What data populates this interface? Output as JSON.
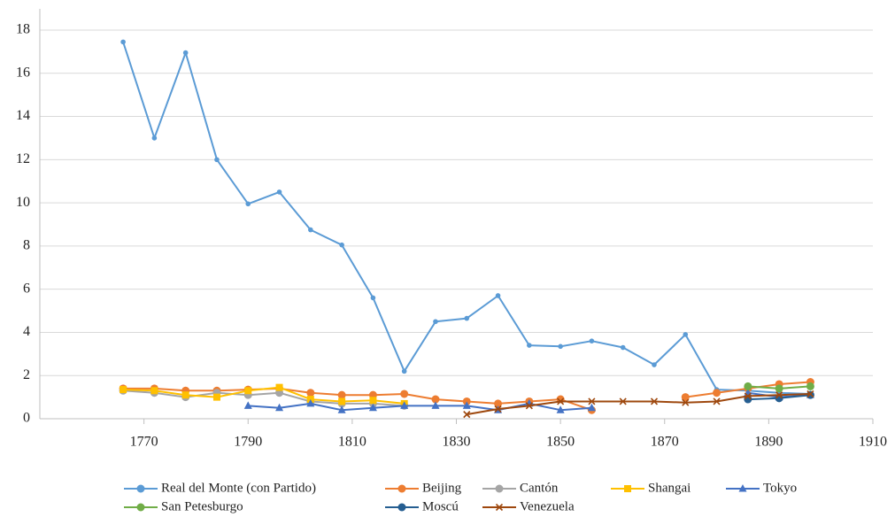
{
  "chart_data": {
    "type": "line",
    "x": [
      1766,
      1772,
      1778,
      1784,
      1790,
      1796,
      1802,
      1808,
      1814,
      1820,
      1826,
      1832,
      1838,
      1844,
      1850,
      1856,
      1862,
      1868,
      1874,
      1880,
      1886,
      1892,
      1898
    ],
    "xlim": [
      1750,
      1910
    ],
    "xticks": [
      1770,
      1790,
      1810,
      1830,
      1850,
      1870,
      1890,
      1910
    ],
    "ylim": [
      0,
      18
    ],
    "yticks": [
      0,
      2,
      4,
      6,
      8,
      10,
      12,
      14,
      16,
      18
    ],
    "grid": true,
    "legend": "bottom",
    "series": [
      {
        "name": "Real del Monte (con Partido)",
        "color": "#5b9bd5",
        "marker": "dot",
        "values": [
          17.45,
          13.0,
          16.95,
          12.0,
          9.95,
          10.5,
          8.75,
          8.05,
          5.6,
          2.2,
          4.5,
          4.65,
          5.7,
          3.4,
          3.35,
          3.6,
          3.3,
          2.5,
          3.9,
          1.35,
          1.3,
          1.2,
          1.15
        ]
      },
      {
        "name": "Beijing",
        "color": "#ed7d31",
        "marker": "circle",
        "values": [
          1.4,
          1.4,
          1.3,
          1.3,
          1.35,
          1.4,
          1.2,
          1.1,
          1.1,
          1.15,
          0.9,
          0.8,
          0.7,
          0.8,
          0.9,
          0.4,
          null,
          null,
          1.0,
          1.2,
          1.4,
          1.6,
          1.7
        ]
      },
      {
        "name": "Cantón",
        "color": "#a5a5a5",
        "marker": "circle",
        "values": [
          1.3,
          1.2,
          1.0,
          1.2,
          1.1,
          1.2,
          0.8,
          0.7,
          0.7,
          0.6,
          null,
          null,
          null,
          null,
          null,
          null,
          null,
          null,
          null,
          null,
          null,
          null,
          null
        ]
      },
      {
        "name": "Shangai",
        "color": "#ffc000",
        "marker": "square",
        "values": [
          1.35,
          1.3,
          1.1,
          1.0,
          1.3,
          1.45,
          0.9,
          0.8,
          0.85,
          0.7,
          null,
          null,
          null,
          null,
          null,
          null,
          null,
          null,
          null,
          null,
          null,
          null,
          null
        ]
      },
      {
        "name": "Tokyo",
        "color": "#4472c4",
        "marker": "triangle",
        "values": [
          null,
          null,
          null,
          null,
          0.6,
          0.5,
          0.7,
          0.4,
          0.5,
          0.6,
          0.6,
          0.6,
          0.4,
          0.7,
          0.4,
          0.5,
          null,
          null,
          null,
          null,
          1.2,
          1.0,
          1.1
        ]
      },
      {
        "name": "San Petesburgo",
        "color": "#70ad47",
        "marker": "circle",
        "values": [
          null,
          null,
          null,
          null,
          null,
          null,
          null,
          null,
          null,
          null,
          null,
          null,
          null,
          null,
          null,
          null,
          null,
          null,
          null,
          null,
          1.5,
          1.4,
          1.5
        ]
      },
      {
        "name": "Moscú",
        "color": "#255e91",
        "marker": "circle",
        "values": [
          null,
          null,
          null,
          null,
          null,
          null,
          null,
          null,
          null,
          null,
          null,
          null,
          null,
          null,
          null,
          null,
          null,
          null,
          null,
          null,
          0.9,
          0.95,
          1.1
        ]
      },
      {
        "name": "Venezuela",
        "color": "#9e480e",
        "marker": "x",
        "values": [
          null,
          null,
          null,
          null,
          null,
          null,
          null,
          null,
          null,
          null,
          null,
          0.2,
          0.45,
          0.6,
          0.8,
          0.8,
          0.8,
          0.8,
          0.75,
          0.8,
          1.05,
          1.1,
          1.15
        ]
      }
    ]
  }
}
